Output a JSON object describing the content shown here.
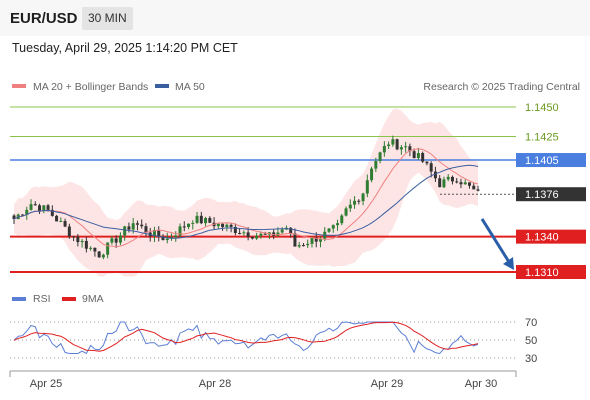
{
  "header": {
    "symbol": "EUR/USD",
    "interval": "30 MIN",
    "timestamp": "Tuesday, April 29, 2025 1:14:20 PM CET"
  },
  "colors": {
    "candle_up": "#2e7d32",
    "candle_down": "#333333",
    "bollinger_fill": "#fde0e0",
    "ma20": "#f08080",
    "ma50": "#3a5fa0",
    "resistance_green": "#8bc34a",
    "pivot_blue": "#4a7fe0",
    "support_red": "#e02020",
    "current_price": "#333333",
    "arrow": "#2b5ea8",
    "rsi": "#5b7fd6",
    "rsi_ma": "#e02020"
  },
  "chart_data": [
    {
      "type": "candlestick",
      "legend": [
        {
          "name": "MA 20 + Bollinger Bands",
          "color": "#f08080"
        },
        {
          "name": "MA 50",
          "color": "#3a5fa0"
        }
      ],
      "watermark": "Research © 2025 Trading Central",
      "ylim": [
        1.1285,
        1.1462
      ],
      "x_ticks": [
        "Apr 25",
        "Apr 28",
        "Apr 29",
        "Apr 30"
      ],
      "levels": [
        {
          "value": 1.145,
          "label": "1.1450",
          "kind": "resistance"
        },
        {
          "value": 1.1425,
          "label": "1.1425",
          "kind": "resistance"
        },
        {
          "value": 1.1405,
          "label": "1.1405",
          "kind": "pivot"
        },
        {
          "value": 1.1376,
          "label": "1.1376",
          "kind": "current"
        },
        {
          "value": 1.134,
          "label": "1.1340",
          "kind": "support"
        },
        {
          "value": 1.131,
          "label": "1.1310",
          "kind": "support"
        }
      ],
      "projection": {
        "from": 1.1372,
        "to": 1.131
      }
    },
    {
      "type": "line",
      "legend": [
        {
          "name": "RSI",
          "color": "#5b7fd6"
        },
        {
          "name": "9MA",
          "color": "#e02020"
        }
      ],
      "ylim": [
        25,
        75
      ],
      "y_ticks": [
        70,
        50,
        30
      ]
    }
  ]
}
